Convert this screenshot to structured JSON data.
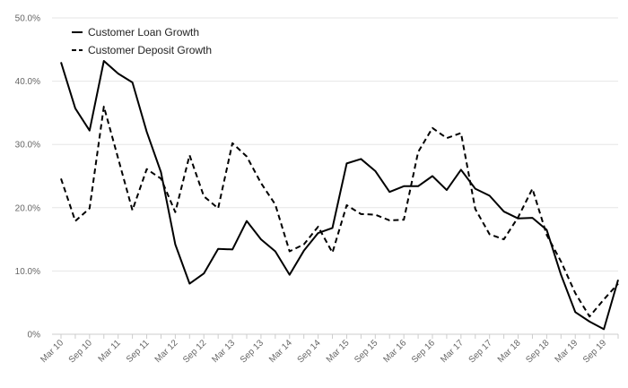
{
  "chart_data": {
    "type": "line",
    "title": "",
    "xlabel": "",
    "ylabel": "",
    "ylim": [
      0,
      50
    ],
    "y_ticks": [
      0,
      10,
      20,
      30,
      40,
      50
    ],
    "y_tick_labels": [
      "0%",
      "10.0%",
      "20.0%",
      "30.0%",
      "40.0%",
      "50.0%"
    ],
    "x_tick_labels": [
      "Mar 10",
      "Sep 10",
      "Mar 11",
      "Sep 11",
      "Mar 12",
      "Sep 12",
      "Mar 13",
      "Sep 13",
      "Mar 14",
      "Sep 14",
      "Mar 15",
      "Sep 15",
      "Mar 16",
      "Sep 16",
      "Mar 17",
      "Sep 17",
      "Mar 18",
      "Sep 18",
      "Mar 19",
      "Sep 19"
    ],
    "x_frequency": "quarterly",
    "x_start": "Mar 10",
    "grid": "horizontal",
    "legend_position": "top-left",
    "series": [
      {
        "name": "Customer Loan Growth",
        "style": "solid",
        "color": "#000000",
        "values": [
          43.0,
          35.7,
          32.2,
          43.2,
          41.2,
          39.8,
          32.0,
          25.6,
          14.2,
          8.0,
          9.6,
          13.5,
          13.4,
          17.9,
          15.0,
          13.1,
          9.4,
          13.2,
          16.0,
          16.8,
          27.0,
          27.7,
          25.8,
          22.5,
          23.4,
          23.4,
          25.0,
          22.8,
          26.0,
          23.0,
          21.9,
          19.4,
          18.3,
          18.4,
          16.5,
          9.4,
          3.5,
          2.0,
          0.8,
          8.6
        ]
      },
      {
        "name": "Customer Deposit Growth",
        "style": "dashed",
        "color": "#000000",
        "values": [
          24.6,
          17.9,
          19.9,
          36.0,
          27.8,
          19.6,
          26.1,
          24.6,
          19.3,
          28.3,
          21.8,
          19.9,
          30.2,
          28.1,
          23.9,
          20.5,
          13.1,
          14.2,
          17.0,
          12.9,
          20.4,
          19.0,
          18.9,
          18.0,
          18.1,
          28.8,
          32.6,
          31.0,
          31.8,
          19.8,
          15.8,
          15.0,
          18.5,
          23.0,
          15.7,
          11.5,
          6.5,
          2.8,
          5.5,
          8.0
        ]
      }
    ]
  }
}
